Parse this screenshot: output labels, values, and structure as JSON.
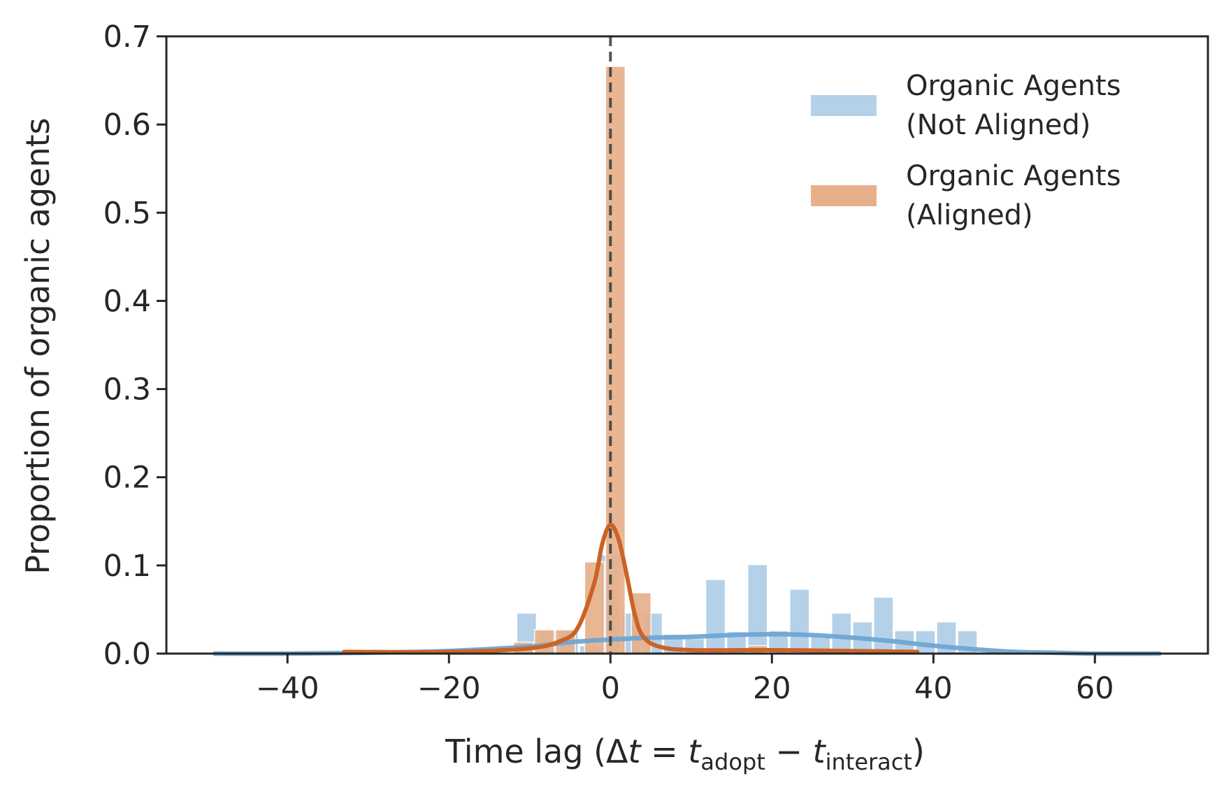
{
  "chart_data": {
    "type": "bar",
    "xlabel_parts": {
      "prefix": "Time lag (Δ",
      "t1": "t",
      "eq": " = ",
      "t2": "t",
      "sub_adopt": "adopt",
      "minus": " − ",
      "t3": "t",
      "sub_interact": "interact",
      "suffix": ")"
    },
    "ylabel": "Proportion of organic agents",
    "xlim": [
      -55,
      74
    ],
    "ylim": [
      0,
      0.7
    ],
    "xticks": [
      -40,
      -20,
      0,
      20,
      40,
      60
    ],
    "xtick_labels": [
      "−40",
      "−20",
      "0",
      "20",
      "40",
      "60"
    ],
    "yticks": [
      0.0,
      0.1,
      0.2,
      0.3,
      0.4,
      0.5,
      0.6,
      0.7
    ],
    "ytick_labels": [
      "0.0",
      "0.1",
      "0.2",
      "0.3",
      "0.4",
      "0.5",
      "0.6",
      "0.7"
    ],
    "reference_line_x": 0,
    "legend_position": "top-right",
    "series": [
      {
        "name": "Organic Agents\n (Not Aligned)",
        "color": "#b4d1e9",
        "line_color": "#6fa5d3",
        "bin_width": 2.6,
        "bins": [
          {
            "x0": -29.9,
            "y": 0.005
          },
          {
            "x0": -19.5,
            "y": 0.003
          },
          {
            "x0": -11.6,
            "y": 0.046
          },
          {
            "x0": -9.0,
            "y": 0.026
          },
          {
            "x0": -6.4,
            "y": 0.026
          },
          {
            "x0": -3.8,
            "y": 0.009
          },
          {
            "x0": -1.2,
            "y": 0.112
          },
          {
            "x0": 1.4,
            "y": 0.046
          },
          {
            "x0": 4.0,
            "y": 0.046
          },
          {
            "x0": 6.6,
            "y": 0.022
          },
          {
            "x0": 9.2,
            "y": 0.017
          },
          {
            "x0": 11.8,
            "y": 0.084
          },
          {
            "x0": 14.4,
            "y": 0.025
          },
          {
            "x0": 17.0,
            "y": 0.101
          },
          {
            "x0": 19.6,
            "y": 0.026
          },
          {
            "x0": 22.2,
            "y": 0.073
          },
          {
            "x0": 24.8,
            "y": 0.02
          },
          {
            "x0": 27.4,
            "y": 0.046
          },
          {
            "x0": 30.0,
            "y": 0.036
          },
          {
            "x0": 32.6,
            "y": 0.064
          },
          {
            "x0": 35.2,
            "y": 0.026
          },
          {
            "x0": 37.8,
            "y": 0.026
          },
          {
            "x0": 40.4,
            "y": 0.036
          },
          {
            "x0": 43.0,
            "y": 0.026
          }
        ],
        "kde": [
          [
            -49,
            0.0
          ],
          [
            -40,
            0.0
          ],
          [
            -30,
            0.001
          ],
          [
            -20,
            0.003
          ],
          [
            -10,
            0.008
          ],
          [
            -5,
            0.013
          ],
          [
            0,
            0.016
          ],
          [
            5,
            0.018
          ],
          [
            10,
            0.019
          ],
          [
            15,
            0.021
          ],
          [
            20,
            0.022
          ],
          [
            25,
            0.021
          ],
          [
            30,
            0.018
          ],
          [
            35,
            0.014
          ],
          [
            40,
            0.009
          ],
          [
            45,
            0.005
          ],
          [
            50,
            0.002
          ],
          [
            55,
            0.001
          ],
          [
            60,
            0.0
          ],
          [
            68,
            0.0
          ]
        ]
      },
      {
        "name": "Organic Agents\n (Aligned)",
        "color": "#e8b08a",
        "line_color": "#cb6326",
        "bin_width": 2.6,
        "bins": [
          {
            "x0": -33.0,
            "y": 0.002
          },
          {
            "x0": -12.0,
            "y": 0.013
          },
          {
            "x0": -9.4,
            "y": 0.027
          },
          {
            "x0": -6.8,
            "y": 0.027
          },
          {
            "x0": -3.2,
            "y": 0.104
          },
          {
            "x0": -0.6,
            "y": 0.666
          },
          {
            "x0": 2.6,
            "y": 0.069
          },
          {
            "x0": 17.0,
            "y": 0.009
          },
          {
            "x0": 30.0,
            "y": 0.003
          }
        ],
        "kde": [
          [
            -33,
            0.002
          ],
          [
            -20,
            0.002
          ],
          [
            -10,
            0.006
          ],
          [
            -6,
            0.015
          ],
          [
            -4,
            0.03
          ],
          [
            -2,
            0.08
          ],
          [
            -1,
            0.125
          ],
          [
            0,
            0.146
          ],
          [
            1,
            0.13
          ],
          [
            2,
            0.09
          ],
          [
            3,
            0.045
          ],
          [
            4,
            0.02
          ],
          [
            6,
            0.008
          ],
          [
            10,
            0.004
          ],
          [
            20,
            0.004
          ],
          [
            30,
            0.003
          ],
          [
            38,
            0.002
          ]
        ]
      }
    ]
  }
}
